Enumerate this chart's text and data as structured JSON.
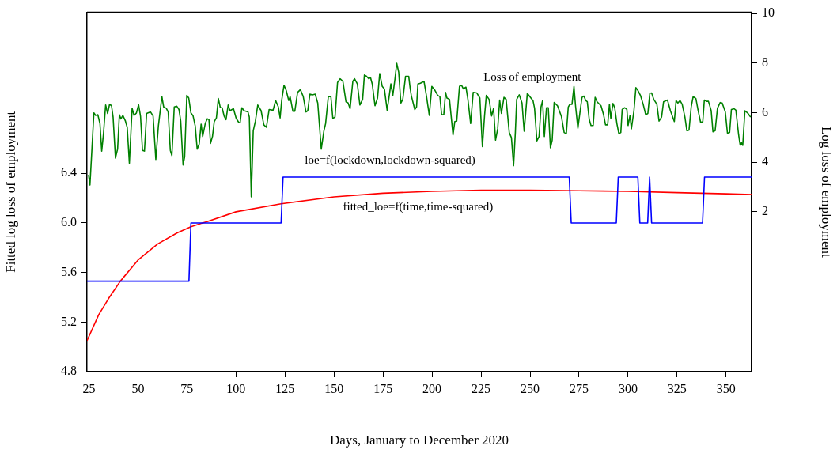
{
  "chart_data": {
    "type": "line",
    "xlabel": "Days, January to December 2020",
    "ylabel": "Fitted log loss of employment",
    "y2label": "Log loss of employment",
    "xlim": [
      24,
      363
    ],
    "xticks": [
      25,
      50,
      75,
      100,
      125,
      150,
      175,
      200,
      225,
      250,
      275,
      300,
      325,
      350
    ],
    "ylim": [
      4.8,
      7.7
    ],
    "yticks": [
      {
        "value": 4.8,
        "label": "4.8"
      },
      {
        "value": 5.2,
        "label": "5.2"
      },
      {
        "value": 5.6,
        "label": "5.6"
      },
      {
        "value": 6.0,
        "label": "6.0"
      },
      {
        "value": 6.4,
        "label": "6.4"
      }
    ],
    "y2lim": [
      -4.45,
      10.05
    ],
    "y2ticks": [
      2,
      4,
      6,
      8,
      10
    ],
    "grid": false,
    "legend": false,
    "marker": "none",
    "line_style": "solid",
    "annotations": [
      "Loss of employment",
      "loe=f(lockdown,lockdown-squared)",
      "fitted_loe=f(time,time-squared)"
    ],
    "series": [
      {
        "type": "line",
        "axis": "y2",
        "color": "#008000",
        "x": [
          24.8,
          25.5,
          27.5,
          28.4,
          29.5,
          30.6,
          31.5,
          32.4,
          33.5,
          34.5,
          35.5,
          36.5,
          37.3,
          38.5,
          39.6,
          40.5,
          41.3,
          42.3,
          43.6,
          44.5,
          45.6,
          47.0,
          48.0,
          49.2,
          50.3,
          51.3,
          52.3,
          53.3,
          54.4,
          56.4,
          57.7,
          59.1,
          60.4,
          62.2,
          63.1,
          64.4,
          65.4,
          66.5,
          67.3,
          68.5,
          69.8,
          70.9,
          71.8,
          73.0,
          73.8,
          74.9,
          75.9,
          77.0,
          78.1,
          79.2,
          80.2,
          81.2,
          82.2,
          83.0,
          84.3,
          85.3,
          86.2,
          87.0,
          88.0,
          88.9,
          90.0,
          91.0,
          92.0,
          92.9,
          94.0,
          94.9,
          96.0,
          96.9,
          98.7,
          100.1,
          101.4,
          102.1,
          103.0,
          104.1,
          106.1,
          106.8,
          107.4,
          107.8,
          108.8,
          109.9,
          111.1,
          112.8,
          114.2,
          115.5,
          116.9,
          118.9,
          120.2,
          121.6,
          122.5,
          123.3,
          124.5,
          125.6,
          126.9,
          127.6,
          129.0,
          130.0,
          131.4,
          132.7,
          133.0,
          134.3,
          135.7,
          136.6,
          137.7,
          139.0,
          140.4,
          141.7,
          143.5,
          144.8,
          145.7,
          147.1,
          148.4,
          149.4,
          150.5,
          151.8,
          153.1,
          154.5,
          156.1,
          157.2,
          158.2,
          159.6,
          160.5,
          161.9,
          163.2,
          164.6,
          165.5,
          166.6,
          167.7,
          168.6,
          169.5,
          170.9,
          172.2,
          173.3,
          174.6,
          175.7,
          177.1,
          178.0,
          179.0,
          180.0,
          181.1,
          182.0,
          183.0,
          184.1,
          185.1,
          186.5,
          188.1,
          188.8,
          189.4,
          191.2,
          192.1,
          192.8,
          194.1,
          195.9,
          197.2,
          198.6,
          199.9,
          201.5,
          202.9,
          204.0,
          204.9,
          206.0,
          206.9,
          207.6,
          208.9,
          210.7,
          211.6,
          212.6,
          214.0,
          215.0,
          216.0,
          217.3,
          218.3,
          219.7,
          221.0,
          222.8,
          224.4,
          225.7,
          226.8,
          227.7,
          229.1,
          230.4,
          231.4,
          232.4,
          233.5,
          234.5,
          235.4,
          236.7,
          237.8,
          239.4,
          240.5,
          241.6,
          242.5,
          243.2,
          244.5,
          245.9,
          247.0,
          248.6,
          249.9,
          251.5,
          252.3,
          253.5,
          254.6,
          255.6,
          256.4,
          257.3,
          258.4,
          259.3,
          260.4,
          261.3,
          262.3,
          264.0,
          266.0,
          267.4,
          268.5,
          269.5,
          270.3,
          271.4,
          272.4,
          273.2,
          274.4,
          275.4,
          276.5,
          277.5,
          278.4,
          279.2,
          280.2,
          281.1,
          282.2,
          283.2,
          284.2,
          286.2,
          287.5,
          288.5,
          289.6,
          290.5,
          291.2,
          292.3,
          293.2,
          294.3,
          295.3,
          296.3,
          297.0,
          298.3,
          299.4,
          300.0,
          301.0,
          301.7,
          303.0,
          304.0,
          305.0,
          306.4,
          307.7,
          309.0,
          310.1,
          311.1,
          312.0,
          313.1,
          314.7,
          315.8,
          317.1,
          318.1,
          320.1,
          321.6,
          323.6,
          324.5,
          325.4,
          326.5,
          327.6,
          329.0,
          330.0,
          331.1,
          332.2,
          333.2,
          334.6,
          335.7,
          337.0,
          338.1,
          338.9,
          340.0,
          341.0,
          342.4,
          343.3,
          344.4,
          345.6,
          347.0,
          348.0,
          349.6,
          350.7,
          351.8,
          352.7,
          354.1,
          355.0,
          356.4,
          357.2,
          357.8,
          358.5,
          359.6,
          361.2,
          362.5
        ],
        "values": [
          3.49,
          3.08,
          5.99,
          5.89,
          5.92,
          5.56,
          4.45,
          5.15,
          6.31,
          5.97,
          6.34,
          6.28,
          5.82,
          4.17,
          4.53,
          5.92,
          5.75,
          5.89,
          5.66,
          5.41,
          3.96,
          6.18,
          5.89,
          5.99,
          6.32,
          5.85,
          4.48,
          4.45,
          5.97,
          6.03,
          5.87,
          4.11,
          5.46,
          6.65,
          6.23,
          6.18,
          6.03,
          4.48,
          4.27,
          6.23,
          6.26,
          6.13,
          5.66,
          3.89,
          4.22,
          6.7,
          6.59,
          5.99,
          5.87,
          5.46,
          4.53,
          4.73,
          5.54,
          5.04,
          5.56,
          5.75,
          5.72,
          4.76,
          5.04,
          5.64,
          5.79,
          6.57,
          6.2,
          6.2,
          5.85,
          5.72,
          6.31,
          6.08,
          6.16,
          5.77,
          5.61,
          5.59,
          6.2,
          6.08,
          6.03,
          5.82,
          3.91,
          2.6,
          5.27,
          5.66,
          6.31,
          6.08,
          5.51,
          5.41,
          6.13,
          6.1,
          6.49,
          6.23,
          5.79,
          6.49,
          7.11,
          6.9,
          6.49,
          6.65,
          6.06,
          6.06,
          6.82,
          6.92,
          6.9,
          6.65,
          6.03,
          6.08,
          6.75,
          6.72,
          6.75,
          6.39,
          4.53,
          5.25,
          5.56,
          6.65,
          6.65,
          5.77,
          5.82,
          7.22,
          7.37,
          7.27,
          6.44,
          6.39,
          6.16,
          7.27,
          7.37,
          7.16,
          6.31,
          6.54,
          7.52,
          7.47,
          7.37,
          7.42,
          7.16,
          6.28,
          6.59,
          7.58,
          7.06,
          6.96,
          6.1,
          6.59,
          7.16,
          6.7,
          7.37,
          7.99,
          7.63,
          6.39,
          6.54,
          7.47,
          7.47,
          7.01,
          6.7,
          6.13,
          6.23,
          7.16,
          7.19,
          7.27,
          6.65,
          5.89,
          7.06,
          6.9,
          6.7,
          6.65,
          5.92,
          5.92,
          6.82,
          6.59,
          6.54,
          5.1,
          5.64,
          5.66,
          7.06,
          7.11,
          6.96,
          7.03,
          6.54,
          5.56,
          6.82,
          6.8,
          6.59,
          4.63,
          5.89,
          6.7,
          6.54,
          5.87,
          6.18,
          4.89,
          5.35,
          6.51,
          5.97,
          6.62,
          6.54,
          5.2,
          4.99,
          3.86,
          5.2,
          6.54,
          6.72,
          6.39,
          5.25,
          6.78,
          6.65,
          6.49,
          6.18,
          4.86,
          5.04,
          6.23,
          6.49,
          5.04,
          6.2,
          6.2,
          4.58,
          4.89,
          6.41,
          6.28,
          5.85,
          5.2,
          5.15,
          6.23,
          6.34,
          6.34,
          7.06,
          6.28,
          5.37,
          5.97,
          6.62,
          6.67,
          6.49,
          6.44,
          5.72,
          5.48,
          5.48,
          6.62,
          6.44,
          6.28,
          5.92,
          5.51,
          5.51,
          6.34,
          5.77,
          6.37,
          6.2,
          5.56,
          5.15,
          5.2,
          6.13,
          6.2,
          6.13,
          5.48,
          5.89,
          5.35,
          6.08,
          7.01,
          6.9,
          6.68,
          6.34,
          5.92,
          5.97,
          6.78,
          6.8,
          6.54,
          6.34,
          5.66,
          5.82,
          6.44,
          6.51,
          6.08,
          5.64,
          6.49,
          6.39,
          6.49,
          6.34,
          5.82,
          5.27,
          5.3,
          6.23,
          6.65,
          6.57,
          6.1,
          5.61,
          5.63,
          6.51,
          6.46,
          6.46,
          6.08,
          5.23,
          5.27,
          6.18,
          6.41,
          6.39,
          6.03,
          5.17,
          5.2,
          6.13,
          6.16,
          6.1,
          5.1,
          4.68,
          4.79,
          4.68,
          6.08,
          5.97,
          5.82
        ]
      },
      {
        "type": "line",
        "color": "#0000ff",
        "x": [
          24,
          76,
          77,
          123,
          124,
          270,
          271,
          294,
          295,
          305,
          306,
          310,
          311,
          312,
          338,
          339,
          363
        ],
        "values": [
          5.53,
          5.53,
          6.0,
          6.0,
          6.37,
          6.37,
          6.0,
          6.0,
          6.37,
          6.37,
          6.0,
          6.0,
          6.37,
          6.0,
          6.0,
          6.37,
          6.37
        ]
      },
      {
        "type": "line",
        "color": "#ff0000",
        "x": [
          24,
          30,
          35,
          41,
          50,
          60,
          70,
          77,
          85,
          100,
          123,
          150,
          175,
          200,
          225,
          250,
          275,
          300,
          325,
          350,
          363
        ],
        "values": [
          5.05,
          5.26,
          5.39,
          5.53,
          5.7,
          5.83,
          5.92,
          5.97,
          6.01,
          6.09,
          6.155,
          6.21,
          6.24,
          6.255,
          6.265,
          6.265,
          6.26,
          6.255,
          6.245,
          6.235,
          6.23
        ]
      }
    ]
  }
}
